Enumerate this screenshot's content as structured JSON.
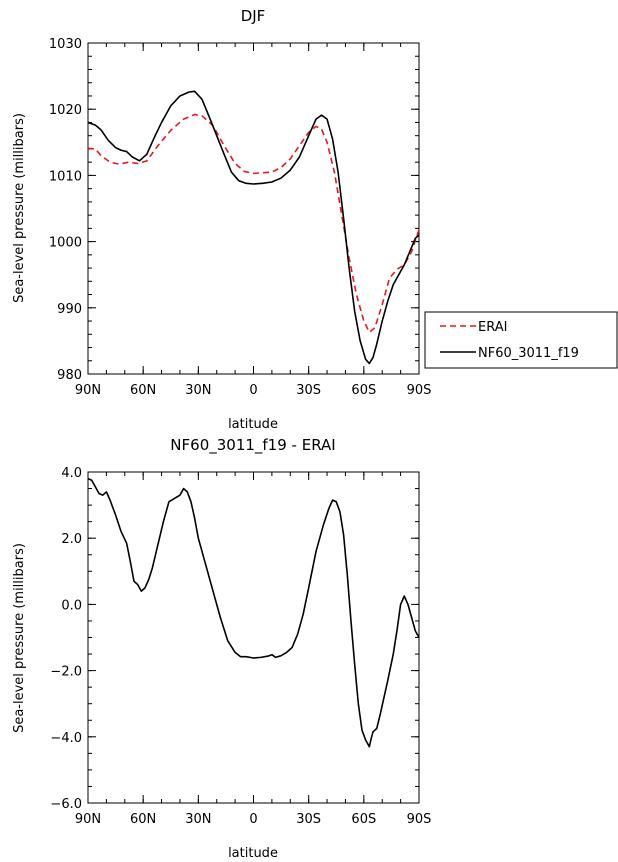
{
  "chart_data": [
    {
      "type": "line",
      "title": "DJF",
      "xlabel": "latitude",
      "ylabel": "Sea-level pressure (millibars)",
      "xlim": [
        -90,
        90
      ],
      "ylim": [
        980,
        1030
      ],
      "x_tick_labels": [
        "90N",
        "60N",
        "30N",
        "0",
        "30S",
        "60S",
        "90S"
      ],
      "y_tick_labels": [
        "980",
        "990",
        "1000",
        "1010",
        "1020",
        "1030"
      ],
      "grid": false,
      "legend": "outside-right",
      "series": [
        {
          "name": "ERAI",
          "color": "#e41a1c",
          "dash": "dashed",
          "points": [
            [
              -90,
              1014.1
            ],
            [
              -86,
              1014.0
            ],
            [
              -83,
              1013.0
            ],
            [
              -78,
              1012.0
            ],
            [
              -73,
              1011.7
            ],
            [
              -68,
              1012.0
            ],
            [
              -63,
              1011.8
            ],
            [
              -58,
              1012.2
            ],
            [
              -52,
              1014.5
            ],
            [
              -45,
              1016.8
            ],
            [
              -38,
              1018.5
            ],
            [
              -32,
              1019.2
            ],
            [
              -28,
              1019.0
            ],
            [
              -22,
              1017.5
            ],
            [
              -16,
              1014.5
            ],
            [
              -10,
              1011.8
            ],
            [
              -5,
              1010.6
            ],
            [
              0,
              1010.3
            ],
            [
              5,
              1010.4
            ],
            [
              10,
              1010.5
            ],
            [
              15,
              1011.2
            ],
            [
              20,
              1012.5
            ],
            [
              25,
              1014.5
            ],
            [
              30,
              1016.5
            ],
            [
              34,
              1017.4
            ],
            [
              37,
              1017.0
            ],
            [
              40,
              1015.0
            ],
            [
              44,
              1010.5
            ],
            [
              48,
              1004.0
            ],
            [
              52,
              997.5
            ],
            [
              56,
              992.0
            ],
            [
              60,
              988.0
            ],
            [
              63,
              986.3
            ],
            [
              66,
              987.0
            ],
            [
              70,
              990.5
            ],
            [
              74,
              994.5
            ],
            [
              78,
              995.8
            ],
            [
              82,
              996.5
            ],
            [
              86,
              998.5
            ],
            [
              90,
              1001.8
            ]
          ]
        },
        {
          "name": "NF60_3011_f19",
          "color": "#000000",
          "dash": "solid",
          "points": [
            [
              -90,
              1018.0
            ],
            [
              -86,
              1017.6
            ],
            [
              -83,
              1016.9
            ],
            [
              -79,
              1015.3
            ],
            [
              -75,
              1014.2
            ],
            [
              -72,
              1013.8
            ],
            [
              -69,
              1013.6
            ],
            [
              -66,
              1012.8
            ],
            [
              -62,
              1012.2
            ],
            [
              -58,
              1013.2
            ],
            [
              -54,
              1015.7
            ],
            [
              -50,
              1018.0
            ],
            [
              -45,
              1020.5
            ],
            [
              -40,
              1022.0
            ],
            [
              -35,
              1022.6
            ],
            [
              -32,
              1022.7
            ],
            [
              -28,
              1021.5
            ],
            [
              -24,
              1018.8
            ],
            [
              -20,
              1016.0
            ],
            [
              -16,
              1013.2
            ],
            [
              -12,
              1010.5
            ],
            [
              -8,
              1009.2
            ],
            [
              -4,
              1008.8
            ],
            [
              0,
              1008.7
            ],
            [
              5,
              1008.8
            ],
            [
              10,
              1009.0
            ],
            [
              15,
              1009.6
            ],
            [
              20,
              1010.8
            ],
            [
              25,
              1012.8
            ],
            [
              30,
              1016.0
            ],
            [
              34,
              1018.5
            ],
            [
              37,
              1019.1
            ],
            [
              40,
              1018.5
            ],
            [
              43,
              1015.5
            ],
            [
              46,
              1010.5
            ],
            [
              49,
              1003.5
            ],
            [
              52,
              996.0
            ],
            [
              55,
              989.5
            ],
            [
              58,
              985.0
            ],
            [
              61,
              982.2
            ],
            [
              63,
              981.6
            ],
            [
              65,
              982.5
            ],
            [
              67,
              984.5
            ],
            [
              70,
              988.0
            ],
            [
              73,
              991.0
            ],
            [
              76,
              993.5
            ],
            [
              79,
              995.0
            ],
            [
              82,
              996.5
            ],
            [
              85,
              998.5
            ],
            [
              88,
              1000.5
            ],
            [
              90,
              1001.0
            ]
          ]
        }
      ]
    },
    {
      "type": "line",
      "title": "NF60_3011_f19 - ERAI",
      "xlabel": "latitude",
      "ylabel": "Sea-level pressure (millibars)",
      "xlim": [
        -90,
        90
      ],
      "ylim": [
        -6,
        4
      ],
      "x_tick_labels": [
        "90N",
        "60N",
        "30N",
        "0",
        "30S",
        "60S",
        "90S"
      ],
      "y_tick_labels": [
        "−6.0",
        "−4.0",
        "−2.0",
        "0.0",
        "2.0",
        "4.0"
      ],
      "grid": false,
      "series": [
        {
          "color": "#000000",
          "dash": "solid",
          "points": [
            [
              -90,
              3.8
            ],
            [
              -88,
              3.75
            ],
            [
              -86,
              3.55
            ],
            [
              -84,
              3.35
            ],
            [
              -82,
              3.3
            ],
            [
              -80,
              3.4
            ],
            [
              -78,
              3.15
            ],
            [
              -75,
              2.7
            ],
            [
              -72,
              2.2
            ],
            [
              -69,
              1.85
            ],
            [
              -67,
              1.3
            ],
            [
              -65,
              0.7
            ],
            [
              -63,
              0.6
            ],
            [
              -61,
              0.4
            ],
            [
              -59,
              0.5
            ],
            [
              -57,
              0.75
            ],
            [
              -55,
              1.1
            ],
            [
              -52,
              1.8
            ],
            [
              -49,
              2.5
            ],
            [
              -46,
              3.1
            ],
            [
              -43,
              3.2
            ],
            [
              -40,
              3.3
            ],
            [
              -38,
              3.5
            ],
            [
              -36,
              3.4
            ],
            [
              -34,
              3.1
            ],
            [
              -32,
              2.6
            ],
            [
              -30,
              2.0
            ],
            [
              -26,
              1.2
            ],
            [
              -22,
              0.4
            ],
            [
              -18,
              -0.4
            ],
            [
              -14,
              -1.1
            ],
            [
              -10,
              -1.45
            ],
            [
              -7,
              -1.58
            ],
            [
              -4,
              -1.58
            ],
            [
              0,
              -1.62
            ],
            [
              4,
              -1.6
            ],
            [
              8,
              -1.56
            ],
            [
              10,
              -1.52
            ],
            [
              12,
              -1.6
            ],
            [
              15,
              -1.55
            ],
            [
              18,
              -1.45
            ],
            [
              21,
              -1.3
            ],
            [
              24,
              -0.9
            ],
            [
              27,
              -0.3
            ],
            [
              30,
              0.5
            ],
            [
              34,
              1.6
            ],
            [
              38,
              2.4
            ],
            [
              41,
              2.9
            ],
            [
              43,
              3.15
            ],
            [
              45,
              3.1
            ],
            [
              47,
              2.8
            ],
            [
              49,
              2.1
            ],
            [
              51,
              0.9
            ],
            [
              53,
              -0.5
            ],
            [
              55,
              -1.8
            ],
            [
              57,
              -3.0
            ],
            [
              59,
              -3.8
            ],
            [
              61,
              -4.1
            ],
            [
              63,
              -4.3
            ],
            [
              64,
              -4.05
            ],
            [
              65,
              -3.85
            ],
            [
              67,
              -3.75
            ],
            [
              69,
              -3.3
            ],
            [
              71,
              -2.8
            ],
            [
              73,
              -2.3
            ],
            [
              76,
              -1.5
            ],
            [
              78,
              -0.8
            ],
            [
              80,
              0.0
            ],
            [
              82,
              0.25
            ],
            [
              84,
              0.0
            ],
            [
              86,
              -0.4
            ],
            [
              88,
              -0.8
            ],
            [
              90,
              -1.0
            ]
          ]
        }
      ]
    }
  ]
}
